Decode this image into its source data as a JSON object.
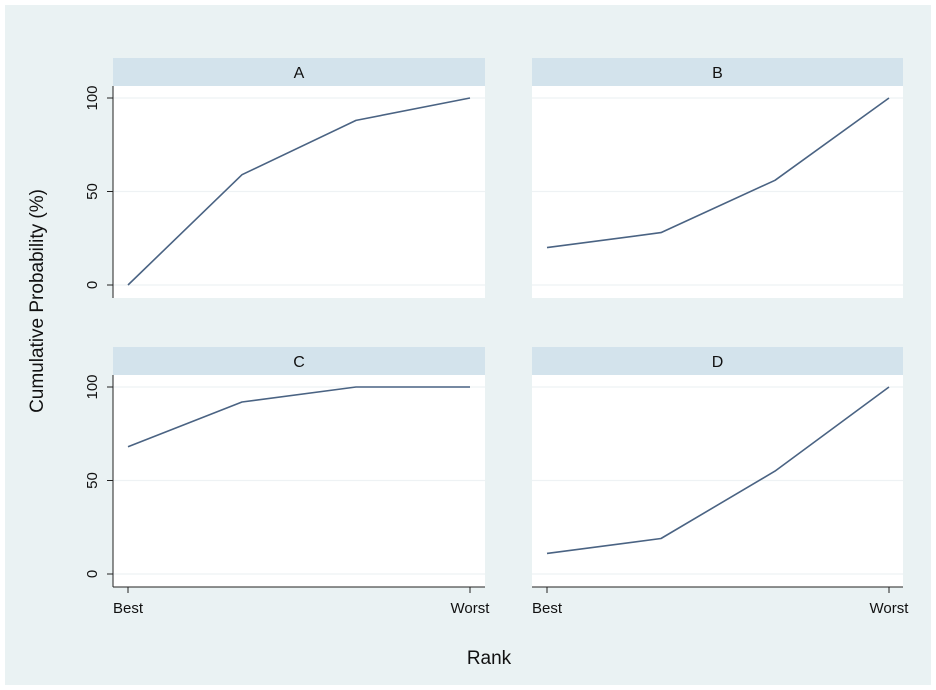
{
  "figure": {
    "ylabel": "Cumulative Probability (%)",
    "xlabel": "Rank",
    "background": "#eaf2f3",
    "strip_color": "#d3e3ec",
    "line_color": "#4a6383",
    "grid_color": "#eef2f4"
  },
  "chart_data": [
    {
      "type": "line",
      "title": "A",
      "x": [
        1,
        2,
        3,
        4
      ],
      "xticks": [
        "Best",
        "",
        "",
        "Worst"
      ],
      "series": [
        {
          "values": [
            0,
            59,
            88,
            100
          ]
        }
      ],
      "ylim": [
        0,
        100
      ],
      "yticks": [
        0,
        50,
        100
      ],
      "grid": true
    },
    {
      "type": "line",
      "title": "B",
      "x": [
        1,
        2,
        3,
        4
      ],
      "xticks": [
        "Best",
        "",
        "",
        "Worst"
      ],
      "series": [
        {
          "values": [
            20,
            28,
            56,
            100
          ]
        }
      ],
      "ylim": [
        0,
        100
      ],
      "yticks": [
        0,
        50,
        100
      ],
      "grid": true
    },
    {
      "type": "line",
      "title": "C",
      "x": [
        1,
        2,
        3,
        4
      ],
      "xticks": [
        "Best",
        "",
        "",
        "Worst"
      ],
      "series": [
        {
          "values": [
            68,
            92,
            100,
            100
          ]
        }
      ],
      "ylim": [
        0,
        100
      ],
      "yticks": [
        0,
        50,
        100
      ],
      "grid": true
    },
    {
      "type": "line",
      "title": "D",
      "x": [
        1,
        2,
        3,
        4
      ],
      "xticks": [
        "Best",
        "",
        "",
        "Worst"
      ],
      "series": [
        {
          "values": [
            11,
            19,
            55,
            100
          ]
        }
      ],
      "ylim": [
        0,
        100
      ],
      "yticks": [
        0,
        50,
        100
      ],
      "grid": true
    }
  ]
}
